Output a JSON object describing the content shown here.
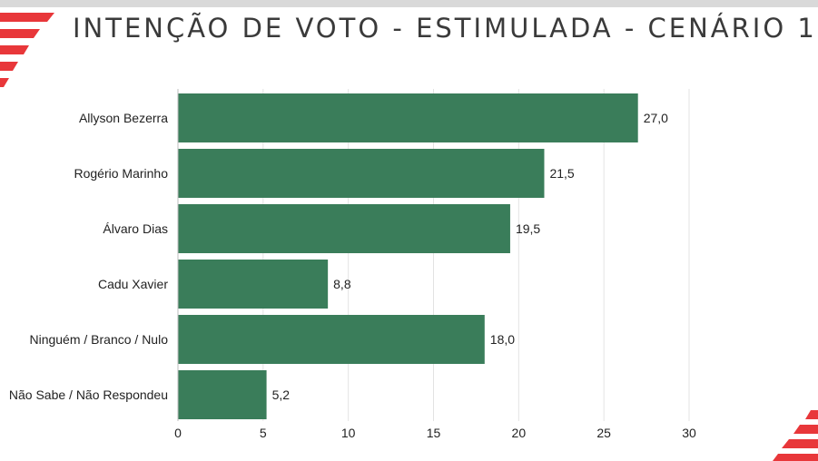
{
  "title": "INTENÇÃO DE VOTO - ESTIMULADA - CENÁRIO 1",
  "colors": {
    "bar": "#3a7d5a",
    "accent": "#e8373a",
    "grid": "#e3e3e3"
  },
  "chart_data": {
    "type": "bar",
    "orientation": "horizontal",
    "categories": [
      "Allyson Bezerra",
      "Rogério Marinho",
      "Álvaro Dias",
      "Cadu Xavier",
      "Ninguém / Branco / Nulo",
      "Não Sabe / Não Respondeu"
    ],
    "values": [
      27.0,
      21.5,
      19.5,
      8.8,
      18.0,
      5.2
    ],
    "value_labels": [
      "27,0",
      "21,5",
      "19,5",
      "8,8",
      "18,0",
      "5,2"
    ],
    "xlim": [
      0,
      30
    ],
    "xticks": [
      0,
      5,
      10,
      15,
      20,
      25,
      30
    ],
    "grid": true,
    "legend": "none"
  }
}
